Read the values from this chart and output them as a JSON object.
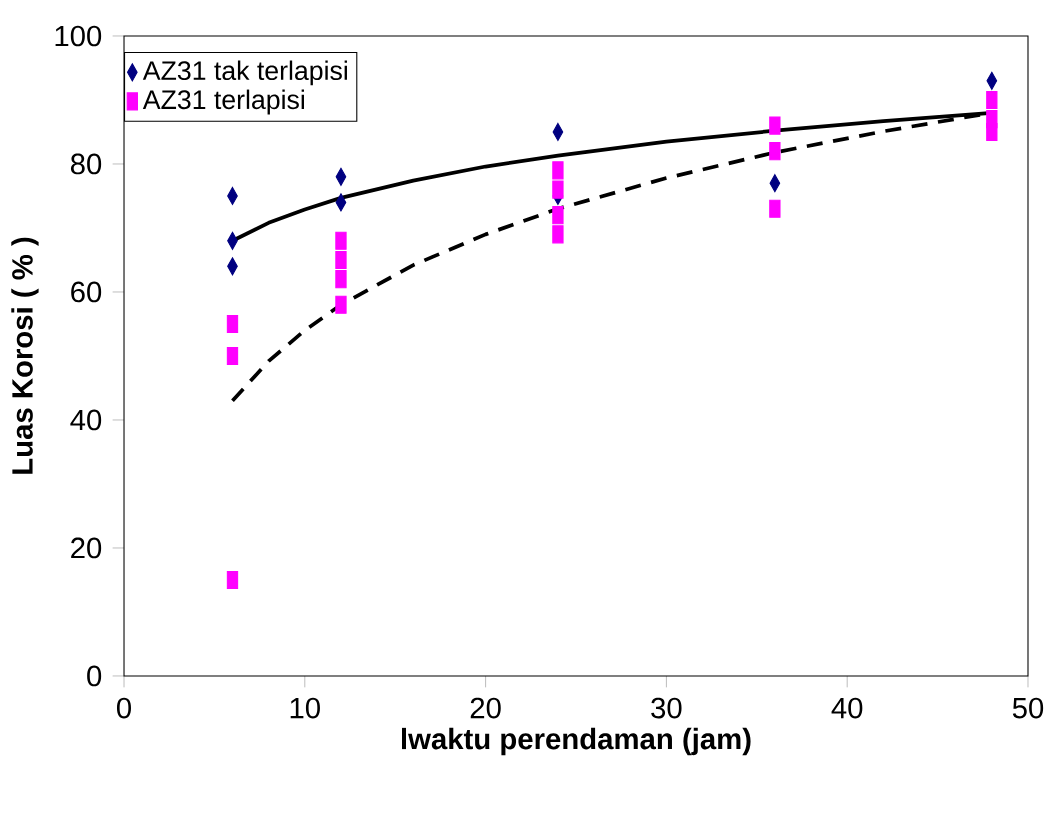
{
  "chart_data": {
    "type": "scatter",
    "xlabel": "lwaktu perendaman (jam)",
    "ylabel": "Luas Korosi ( % )",
    "xlim": [
      0,
      50
    ],
    "ylim": [
      0,
      100
    ],
    "xticks": [
      0,
      10,
      20,
      30,
      40,
      50
    ],
    "yticks": [
      0,
      20,
      40,
      60,
      80,
      100
    ],
    "grid": false,
    "legend": "top left",
    "series": [
      {
        "name": "AZ31 tak terlapisi",
        "color": "#000080",
        "marker": "diamond",
        "x": [
          6,
          6,
          6,
          12,
          12,
          24,
          24,
          36,
          48
        ],
        "values": [
          75,
          68,
          64,
          78,
          74,
          85,
          75,
          77,
          93
        ]
      },
      {
        "name": "AZ31 terlapisi",
        "color": "#ff00ff",
        "marker": "square",
        "x": [
          6,
          6,
          6,
          12,
          12,
          12,
          12,
          24,
          24,
          24,
          24,
          36,
          36,
          36,
          48,
          48,
          48
        ],
        "values": [
          55,
          50,
          15,
          68,
          65,
          62,
          58,
          79,
          76,
          72,
          69,
          86,
          82,
          73,
          90,
          87,
          85
        ]
      },
      {
        "type": "line",
        "color": "#000000",
        "line_style": "solid",
        "marker": "none",
        "x": [
          6,
          8,
          10,
          12,
          16,
          20,
          24,
          30,
          36,
          42,
          48
        ],
        "values": [
          68,
          70.8,
          72.9,
          74.7,
          77.4,
          79.6,
          81.3,
          83.5,
          85.2,
          86.7,
          88
        ]
      },
      {
        "type": "line",
        "color": "#000000",
        "line_style": "dashed",
        "marker": "none",
        "x": [
          6,
          8,
          10,
          12,
          16,
          20,
          24,
          30,
          36,
          42,
          48
        ],
        "values": [
          43,
          49.2,
          54,
          58,
          64.2,
          69,
          73,
          77.8,
          81.8,
          85.1,
          88
        ]
      }
    ]
  }
}
